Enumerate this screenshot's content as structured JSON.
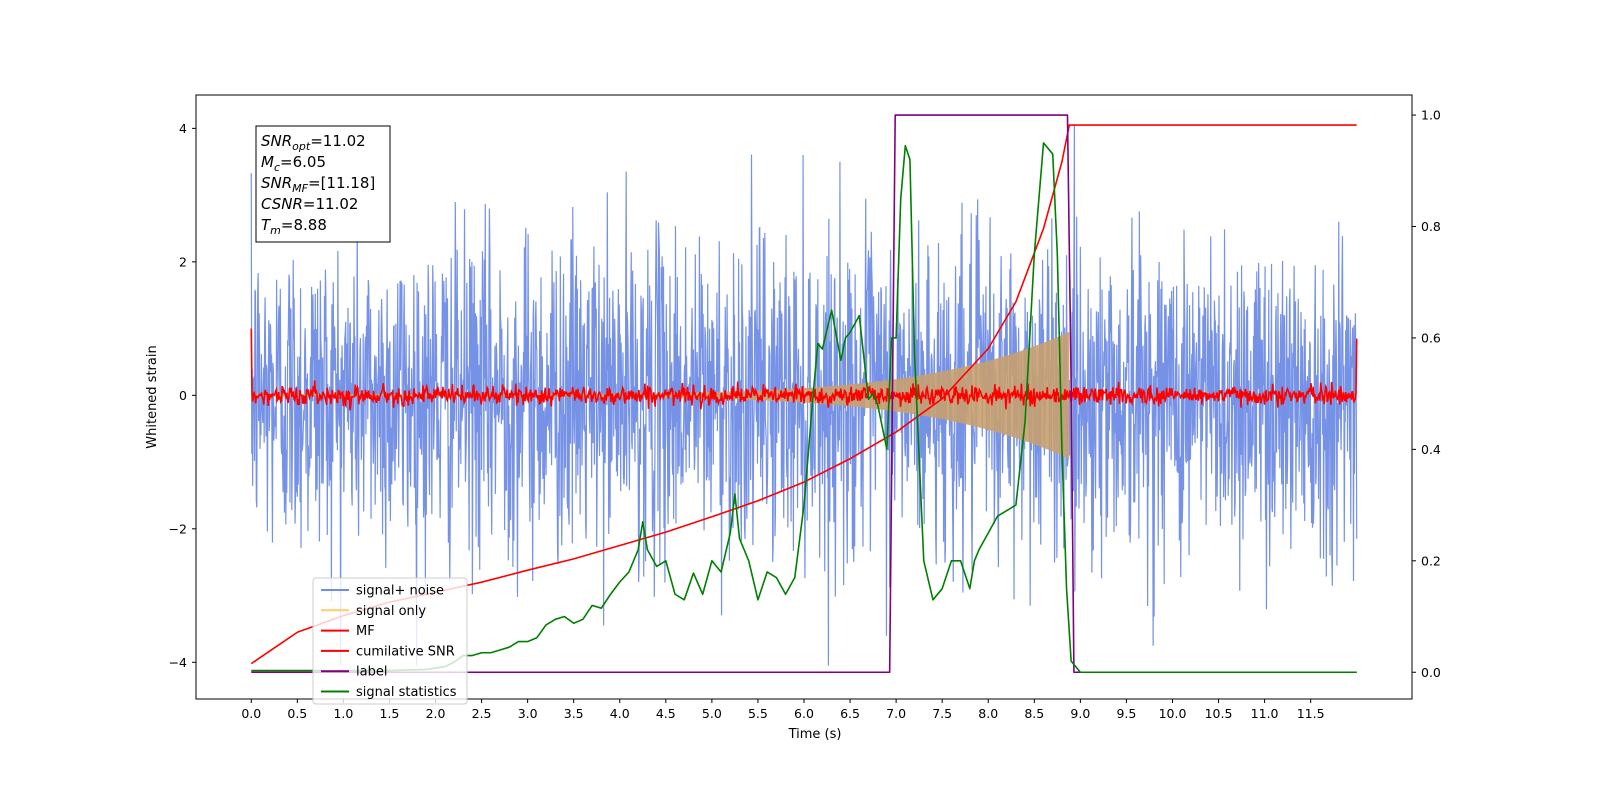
{
  "chart_data": {
    "type": "line",
    "title": "",
    "xlabel": "Time (s)",
    "ylabel": "Whitened strain",
    "xlim": [
      -0.6,
      12.6
    ],
    "ylim": [
      -4.55,
      4.5
    ],
    "y2lim": [
      -0.048,
      1.036
    ],
    "x_ticks": [
      "0.0",
      "0.5",
      "1.0",
      "1.5",
      "2.0",
      "2.5",
      "3.0",
      "3.5",
      "4.0",
      "4.5",
      "5.0",
      "5.5",
      "6.0",
      "6.5",
      "7.0",
      "7.5",
      "8.0",
      "8.5",
      "9.0",
      "9.5",
      "10.0",
      "10.5",
      "11.0",
      "11.5"
    ],
    "y_ticks": [
      "-4",
      "-2",
      "0",
      "2",
      "4"
    ],
    "y2_ticks": [
      "0.0",
      "0.2",
      "0.4",
      "0.6",
      "0.8",
      "1.0"
    ],
    "grid": false,
    "legend_position": "lower-left",
    "annotation": [
      {
        "sym": "SNR",
        "sub": "opt",
        "value": "=11.02"
      },
      {
        "sym": "M",
        "sub": "c",
        "value": "=6.05"
      },
      {
        "sym": "SNR",
        "sub": "MF",
        "value": "=[11.18]"
      },
      {
        "sym": "CSNR",
        "sub": "",
        "value": "=11.02"
      },
      {
        "sym": "T",
        "sub": "m",
        "value": "=8.88"
      }
    ],
    "series": [
      {
        "name": "signal+ noise",
        "color": "#6f8ce6",
        "axis": "left",
        "kind": "noise",
        "t_range": [
          0,
          12
        ],
        "amplitude_std": 1.2,
        "clip": 4.05
      },
      {
        "name": "signal only",
        "color": "#ffcc66",
        "axis": "left",
        "kind": "chirp-envelope",
        "t_range": [
          0,
          8.88
        ],
        "amplitude_start": 0.02,
        "amplitude_end": 0.95
      },
      {
        "name": "MF",
        "color": "#ff0000",
        "axis": "left",
        "kind": "noise",
        "t_range": [
          0,
          12
        ],
        "amplitude_std": 0.07,
        "start_value": 1.0,
        "end_value": 0.85
      },
      {
        "name": "cumilative SNR",
        "color": "#ff0000",
        "axis": "left",
        "x": [
          0,
          0.5,
          1,
          1.5,
          2,
          2.5,
          3,
          3.5,
          4,
          4.5,
          5,
          5.5,
          6,
          6.5,
          7,
          7.5,
          8,
          8.3,
          8.6,
          8.8,
          8.88,
          9.0,
          12.0
        ],
        "y": [
          -4.02,
          -3.55,
          -3.3,
          -3.1,
          -2.95,
          -2.8,
          -2.62,
          -2.45,
          -2.25,
          -2.05,
          -1.82,
          -1.58,
          -1.3,
          -0.95,
          -0.55,
          -0.05,
          0.7,
          1.4,
          2.5,
          3.5,
          4.05,
          4.05,
          4.05
        ]
      },
      {
        "name": "label",
        "color": "#800080",
        "axis": "right",
        "x": [
          0,
          6.93,
          6.99,
          8.86,
          8.9,
          8.93,
          12.0
        ],
        "y": [
          0,
          0,
          1.0,
          1.0,
          0.52,
          0,
          0
        ]
      },
      {
        "name": "signal statistics",
        "color": "#008000",
        "axis": "right",
        "x": [
          0,
          0.3,
          0.6,
          1.0,
          1.5,
          1.9,
          2.1,
          2.2,
          2.3,
          2.4,
          2.5,
          2.6,
          2.7,
          2.8,
          2.9,
          3.0,
          3.1,
          3.2,
          3.3,
          3.4,
          3.5,
          3.6,
          3.7,
          3.8,
          3.9,
          4.0,
          4.1,
          4.2,
          4.25,
          4.3,
          4.4,
          4.5,
          4.6,
          4.7,
          4.8,
          4.9,
          5.0,
          5.1,
          5.2,
          5.25,
          5.3,
          5.4,
          5.5,
          5.6,
          5.7,
          5.8,
          5.9,
          6.0,
          6.05,
          6.1,
          6.15,
          6.2,
          6.3,
          6.4,
          6.45,
          6.5,
          6.6,
          6.7,
          6.75,
          6.8,
          6.9,
          6.95,
          7.0,
          7.05,
          7.1,
          7.15,
          7.2,
          7.3,
          7.4,
          7.5,
          7.6,
          7.7,
          7.8,
          7.85,
          7.9,
          8.0,
          8.1,
          8.2,
          8.3,
          8.4,
          8.5,
          8.6,
          8.7,
          8.75,
          8.8,
          8.85,
          8.9,
          9.0,
          11.0,
          12.0
        ],
        "y": [
          0.003,
          0.003,
          0.003,
          0.003,
          0.003,
          0.005,
          0.01,
          0.018,
          0.03,
          0.03,
          0.035,
          0.035,
          0.04,
          0.045,
          0.055,
          0.055,
          0.062,
          0.085,
          0.095,
          0.1,
          0.088,
          0.095,
          0.12,
          0.115,
          0.14,
          0.162,
          0.18,
          0.22,
          0.27,
          0.22,
          0.19,
          0.2,
          0.14,
          0.13,
          0.178,
          0.14,
          0.2,
          0.18,
          0.25,
          0.32,
          0.24,
          0.2,
          0.13,
          0.18,
          0.17,
          0.14,
          0.17,
          0.3,
          0.4,
          0.5,
          0.59,
          0.58,
          0.65,
          0.56,
          0.6,
          0.61,
          0.64,
          0.49,
          0.5,
          0.48,
          0.4,
          0.6,
          0.6,
          0.85,
          0.945,
          0.92,
          0.57,
          0.2,
          0.13,
          0.15,
          0.2,
          0.2,
          0.15,
          0.2,
          0.22,
          0.25,
          0.28,
          0.29,
          0.3,
          0.45,
          0.75,
          0.95,
          0.93,
          0.75,
          0.4,
          0.15,
          0.02,
          0.0,
          0.0,
          0.0
        ]
      }
    ]
  }
}
